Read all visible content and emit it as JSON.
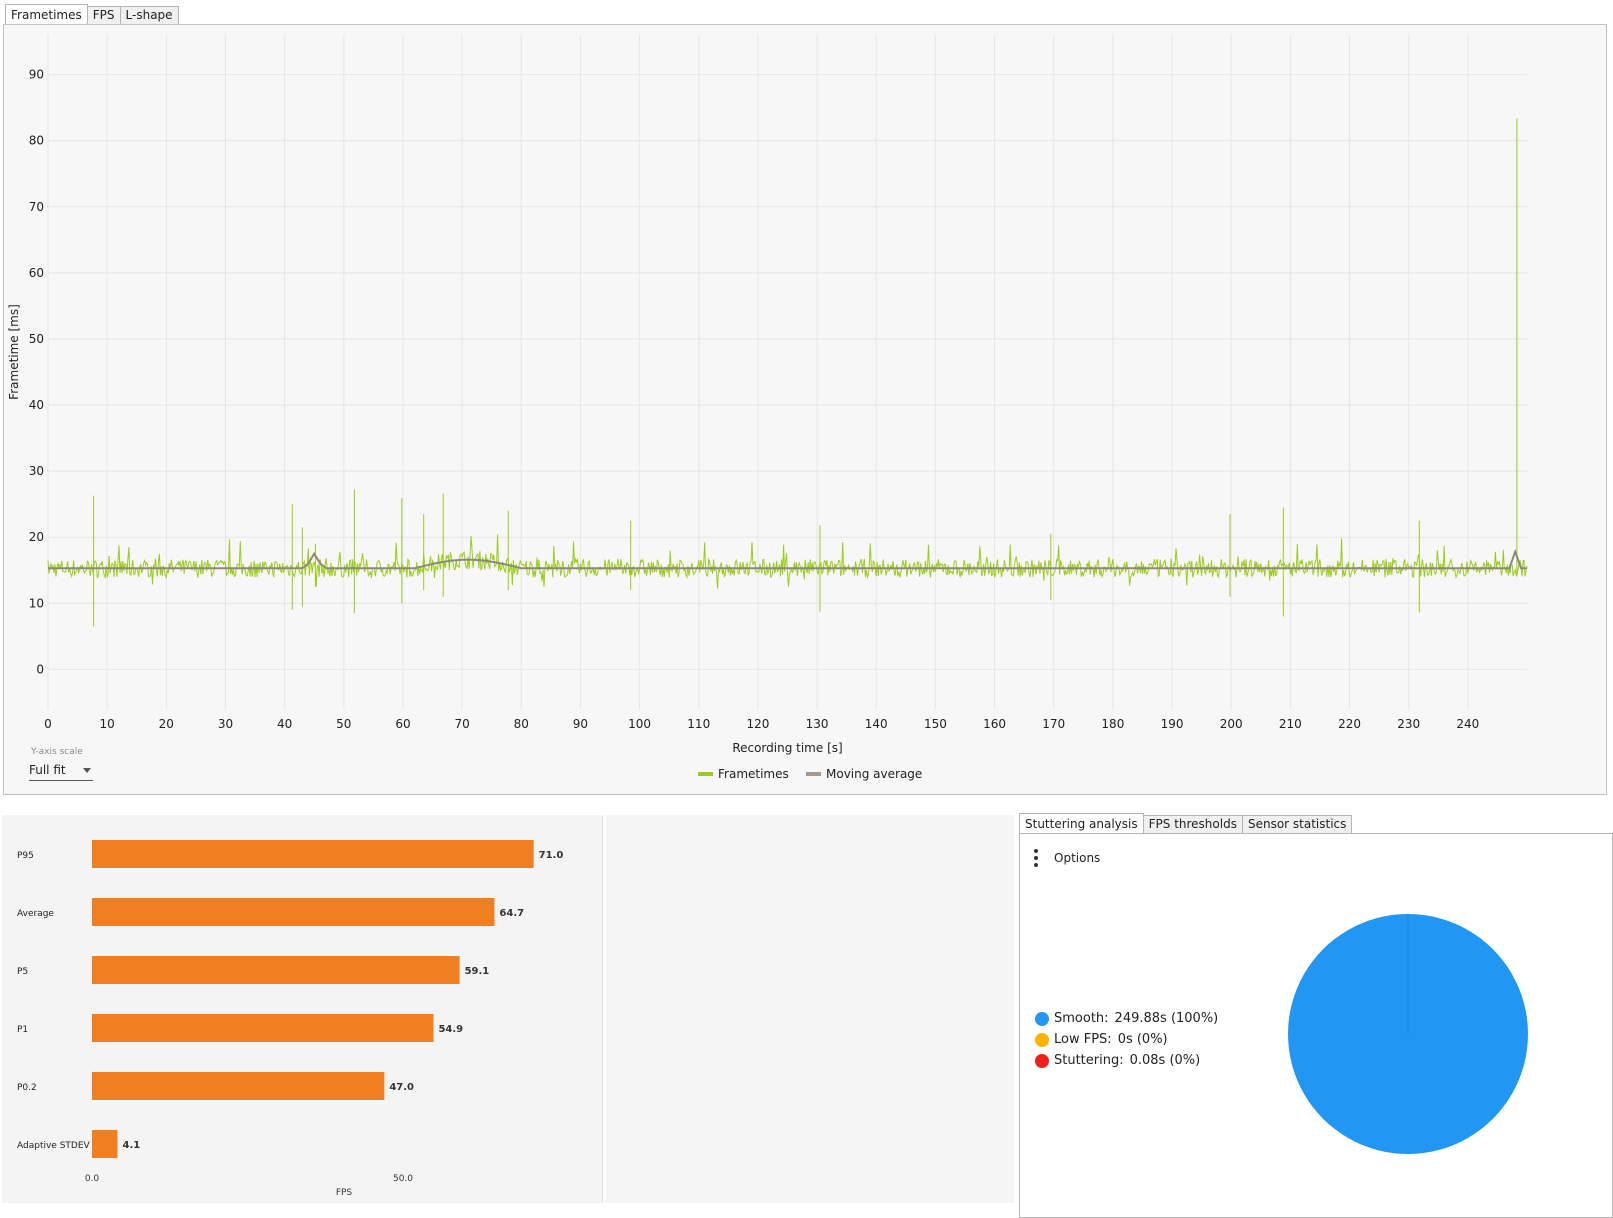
{
  "tabs": [
    "Frametimes",
    "FPS",
    "L-shape"
  ],
  "active_tab": 0,
  "y_axis_scale": {
    "label": "Y-axis scale",
    "value": "Full fit"
  },
  "legend": [
    {
      "name": "Frametimes",
      "color": "#9acd1a"
    },
    {
      "name": "Moving average",
      "color": "#a39a93"
    }
  ],
  "bottom_tabs": [
    "Stuttering analysis",
    "FPS thresholds",
    "Sensor statistics"
  ],
  "bottom_active_tab": 0,
  "options_label": "Options",
  "stutter_legend": [
    {
      "name": "Smooth:",
      "value": "249.88s (100%)",
      "color": "#2196f3"
    },
    {
      "name": "Low FPS:",
      "value": "0s (0%)",
      "color": "#ffb300"
    },
    {
      "name": "Stuttering:",
      "value": "0.08s (0%)",
      "color": "#f21d1d"
    }
  ],
  "chart_data": [
    {
      "type": "line",
      "xlabel": "Recording time [s]",
      "ylabel": "Frametime [ms]",
      "xlim": [
        0,
        250
      ],
      "ylim": [
        -6,
        96
      ],
      "xticks": [
        0,
        10,
        20,
        30,
        40,
        50,
        60,
        70,
        80,
        90,
        100,
        110,
        120,
        130,
        140,
        150,
        160,
        170,
        180,
        190,
        200,
        210,
        220,
        230,
        240
      ],
      "yticks": [
        0,
        10,
        20,
        30,
        40,
        50,
        60,
        70,
        80,
        90
      ],
      "grid": true,
      "legend_position": "bottom-center",
      "baseline": 15.3,
      "noise_amplitude": 1.4,
      "spikes": [
        {
          "x": 7.7,
          "y": 26.3,
          "low": 6.5
        },
        {
          "x": 41.3,
          "y": 25.0,
          "low": 9.0
        },
        {
          "x": 43.0,
          "y": 21.5,
          "low": 9.5
        },
        {
          "x": 45.2,
          "y": 19.0,
          "low": 12.5
        },
        {
          "x": 51.8,
          "y": 27.2,
          "low": 8.5
        },
        {
          "x": 59.8,
          "y": 25.9,
          "low": 10.0
        },
        {
          "x": 63.5,
          "y": 23.5,
          "low": 12.0
        },
        {
          "x": 66.8,
          "y": 26.6,
          "low": 11.0
        },
        {
          "x": 77.8,
          "y": 24.0,
          "low": 12.0
        },
        {
          "x": 98.5,
          "y": 22.5,
          "low": 12.0
        },
        {
          "x": 130.5,
          "y": 21.8,
          "low": 8.7
        },
        {
          "x": 169.5,
          "y": 20.5,
          "low": 10.5
        },
        {
          "x": 199.8,
          "y": 23.5,
          "low": 11.0
        },
        {
          "x": 208.8,
          "y": 24.5,
          "low": 8.0
        },
        {
          "x": 231.8,
          "y": 22.5,
          "low": 8.6
        },
        {
          "x": 248.3,
          "y": 83.4,
          "low": 14.0
        }
      ],
      "series": [
        {
          "name": "Frametimes",
          "color": "#9acd1a"
        },
        {
          "name": "Moving average",
          "color": "#8e8878"
        }
      ]
    },
    {
      "type": "bar",
      "orientation": "horizontal",
      "xlabel": "FPS",
      "xlim": [
        0,
        74
      ],
      "xticks": [
        "0.0",
        "50.0"
      ],
      "color": "#f07f22",
      "categories": [
        "P95",
        "Average",
        "P5",
        "P1",
        "P0.2",
        "Adaptive STDEV"
      ],
      "values": [
        71.0,
        64.7,
        59.1,
        54.9,
        47.0,
        4.1
      ],
      "value_labels": [
        "71.0",
        "64.7",
        "59.1",
        "54.9",
        "47.0",
        "4.1"
      ]
    },
    {
      "type": "pie",
      "labels": [
        "Smooth",
        "Low FPS",
        "Stuttering"
      ],
      "values": [
        249.88,
        0,
        0.08
      ],
      "colors": [
        "#2196f3",
        "#ffb300",
        "#f21d1d"
      ]
    }
  ]
}
